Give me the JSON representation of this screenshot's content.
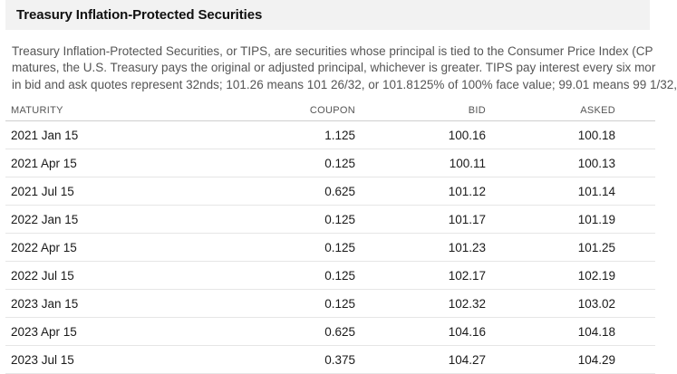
{
  "title": "Treasury Inflation-Protected Securities",
  "description": [
    "Treasury Inflation-Protected Securities, or TIPS, are securities whose principal is tied to the Consumer Price Index (CP",
    "matures, the U.S. Treasury pays the original or adjusted principal, whichever is greater. TIPS pay interest every six mor",
    "in bid and ask quotes represent 32nds; 101.26 means 101 26/32, or 101.8125% of 100% face value; 99.01 means 99 1/32,"
  ],
  "table": {
    "headers": {
      "maturity": "MATURITY",
      "coupon": "COUPON",
      "bid": "BID",
      "asked": "ASKED"
    },
    "rows": [
      {
        "maturity": "2021 Jan 15",
        "coupon": "1.125",
        "bid": "100.16",
        "asked": "100.18"
      },
      {
        "maturity": "2021 Apr 15",
        "coupon": "0.125",
        "bid": "100.11",
        "asked": "100.13"
      },
      {
        "maturity": "2021 Jul 15",
        "coupon": "0.625",
        "bid": "101.12",
        "asked": "101.14"
      },
      {
        "maturity": "2022 Jan 15",
        "coupon": "0.125",
        "bid": "101.17",
        "asked": "101.19"
      },
      {
        "maturity": "2022 Apr 15",
        "coupon": "0.125",
        "bid": "101.23",
        "asked": "101.25"
      },
      {
        "maturity": "2022 Jul 15",
        "coupon": "0.125",
        "bid": "102.17",
        "asked": "102.19"
      },
      {
        "maturity": "2023 Jan 15",
        "coupon": "0.125",
        "bid": "102.32",
        "asked": "103.02"
      },
      {
        "maturity": "2023 Apr 15",
        "coupon": "0.625",
        "bid": "104.16",
        "asked": "104.18"
      },
      {
        "maturity": "2023 Jul 15",
        "coupon": "0.375",
        "bid": "104.27",
        "asked": "104.29"
      }
    ]
  }
}
